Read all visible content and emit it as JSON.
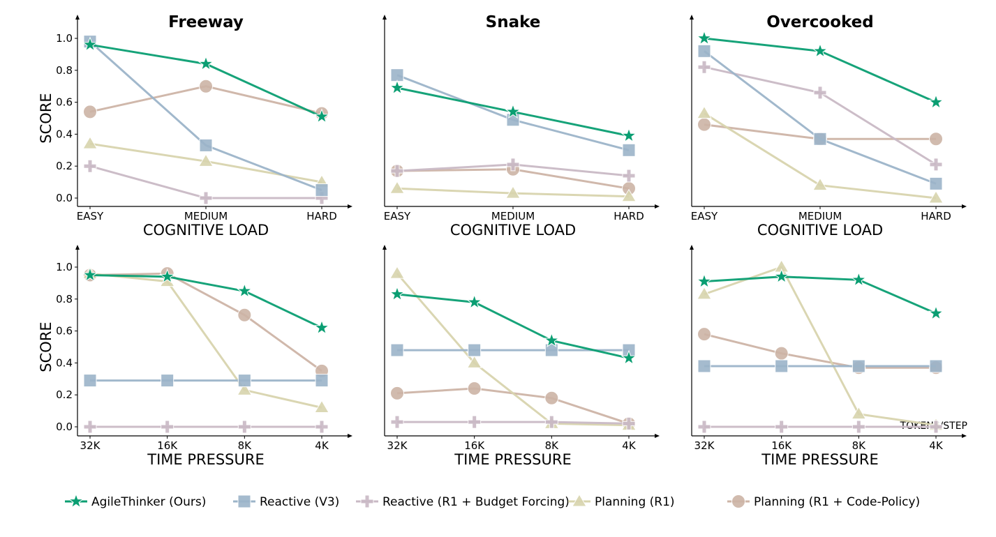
{
  "legend_position": "bottom",
  "series_styles": [
    {
      "name": "AgileThinker (Ours)",
      "color": "#0a9e72",
      "marker": "star"
    },
    {
      "name": "Reactive (V3)",
      "color": "#9cb4c9",
      "marker": "square"
    },
    {
      "name": "Reactive (R1 + Budget Forcing)",
      "color": "#c9b9c5",
      "marker": "plus"
    },
    {
      "name": "Planning (R1)",
      "color": "#d8d4ae",
      "marker": "triangle"
    },
    {
      "name": "Planning (R1 + Code-Policy)",
      "color": "#cdb4a6",
      "marker": "circle"
    }
  ],
  "chart_data": [
    {
      "type": "line",
      "title": "Freeway",
      "xlabel": "COGNITIVE LOAD",
      "ylabel": "SCORE",
      "ylim": [
        0,
        1
      ],
      "yticks": [
        "0.0",
        "0.2",
        "0.4",
        "0.6",
        "0.8",
        "1.0"
      ],
      "show_yticks": true,
      "categories": [
        "EASY",
        "MEDIUM",
        "HARD"
      ],
      "series": [
        {
          "name": "AgileThinker (Ours)",
          "values": [
            0.96,
            0.84,
            0.51
          ]
        },
        {
          "name": "Reactive (V3)",
          "values": [
            0.98,
            0.33,
            0.05
          ]
        },
        {
          "name": "Reactive (R1 + Budget Forcing)",
          "values": [
            0.2,
            0.0,
            0.0
          ]
        },
        {
          "name": "Planning (R1)",
          "values": [
            0.34,
            0.23,
            0.1
          ]
        },
        {
          "name": "Planning (R1 + Code-Policy)",
          "values": [
            0.54,
            0.7,
            0.53
          ]
        }
      ]
    },
    {
      "type": "line",
      "title": "Snake",
      "xlabel": "COGNITIVE LOAD",
      "ylabel": "",
      "ylim": [
        0,
        1
      ],
      "show_yticks": false,
      "categories": [
        "EASY",
        "MEDIUM",
        "HARD"
      ],
      "series": [
        {
          "name": "AgileThinker (Ours)",
          "values": [
            0.69,
            0.54,
            0.39
          ]
        },
        {
          "name": "Reactive (V3)",
          "values": [
            0.77,
            0.49,
            0.3
          ]
        },
        {
          "name": "Reactive (R1 + Budget Forcing)",
          "values": [
            0.17,
            0.21,
            0.14
          ]
        },
        {
          "name": "Planning (R1)",
          "values": [
            0.06,
            0.03,
            0.01
          ]
        },
        {
          "name": "Planning (R1 + Code-Policy)",
          "values": [
            0.17,
            0.18,
            0.06
          ]
        }
      ]
    },
    {
      "type": "line",
      "title": "Overcooked",
      "xlabel": "COGNITIVE LOAD",
      "ylabel": "",
      "ylim": [
        0,
        1
      ],
      "show_yticks": false,
      "categories": [
        "EASY",
        "MEDIUM",
        "HARD"
      ],
      "series": [
        {
          "name": "AgileThinker (Ours)",
          "values": [
            1.0,
            0.92,
            0.6
          ]
        },
        {
          "name": "Reactive (V3)",
          "values": [
            0.92,
            0.37,
            0.09
          ]
        },
        {
          "name": "Reactive (R1 + Budget Forcing)",
          "values": [
            0.82,
            0.66,
            0.21
          ]
        },
        {
          "name": "Planning (R1)",
          "values": [
            0.53,
            0.08,
            0.0
          ]
        },
        {
          "name": "Planning (R1 + Code-Policy)",
          "values": [
            0.46,
            0.37,
            0.37
          ]
        }
      ]
    },
    {
      "type": "line",
      "title": "",
      "xlabel": "TIME PRESSURE",
      "ylabel": "SCORE",
      "ylim": [
        0,
        1
      ],
      "yticks": [
        "0.0",
        "0.2",
        "0.4",
        "0.6",
        "0.8",
        "1.0"
      ],
      "show_yticks": true,
      "categories": [
        "32K",
        "16K",
        "8K",
        "4K"
      ],
      "series": [
        {
          "name": "AgileThinker (Ours)",
          "values": [
            0.95,
            0.94,
            0.85,
            0.62
          ]
        },
        {
          "name": "Reactive (V3)",
          "values": [
            0.29,
            0.29,
            0.29,
            0.29
          ]
        },
        {
          "name": "Reactive (R1 + Budget Forcing)",
          "values": [
            0.0,
            0.0,
            0.0,
            0.0
          ]
        },
        {
          "name": "Planning (R1)",
          "values": [
            0.96,
            0.91,
            0.23,
            0.12
          ]
        },
        {
          "name": "Planning (R1 + Code-Policy)",
          "values": [
            0.95,
            0.96,
            0.7,
            0.35
          ]
        }
      ]
    },
    {
      "type": "line",
      "title": "",
      "xlabel": "TIME PRESSURE",
      "ylabel": "",
      "ylim": [
        0,
        1
      ],
      "show_yticks": false,
      "categories": [
        "32K",
        "16K",
        "8K",
        "4K"
      ],
      "series": [
        {
          "name": "AgileThinker (Ours)",
          "values": [
            0.83,
            0.78,
            0.54,
            0.43
          ]
        },
        {
          "name": "Reactive (V3)",
          "values": [
            0.48,
            0.48,
            0.48,
            0.48
          ]
        },
        {
          "name": "Reactive (R1 + Budget Forcing)",
          "values": [
            0.03,
            0.03,
            0.03,
            0.02
          ]
        },
        {
          "name": "Planning (R1)",
          "values": [
            0.96,
            0.4,
            0.02,
            0.01
          ]
        },
        {
          "name": "Planning (R1 + Code-Policy)",
          "values": [
            0.21,
            0.24,
            0.18,
            0.02
          ]
        }
      ]
    },
    {
      "type": "line",
      "title": "",
      "xlabel": "TIME PRESSURE",
      "ylabel": "",
      "ylim": [
        0,
        1
      ],
      "show_yticks": false,
      "annotation": "TOKENS/STEP",
      "categories": [
        "32K",
        "16K",
        "8K",
        "4K"
      ],
      "series": [
        {
          "name": "AgileThinker (Ours)",
          "values": [
            0.91,
            0.94,
            0.92,
            0.71
          ]
        },
        {
          "name": "Reactive (V3)",
          "values": [
            0.38,
            0.38,
            0.38,
            0.38
          ]
        },
        {
          "name": "Reactive (R1 + Budget Forcing)",
          "values": [
            0.0,
            0.0,
            0.0,
            0.0
          ]
        },
        {
          "name": "Planning (R1)",
          "values": [
            0.83,
            1.0,
            0.08,
            0.01
          ]
        },
        {
          "name": "Planning (R1 + Code-Policy)",
          "values": [
            0.58,
            0.46,
            0.37,
            0.37
          ]
        }
      ]
    }
  ]
}
